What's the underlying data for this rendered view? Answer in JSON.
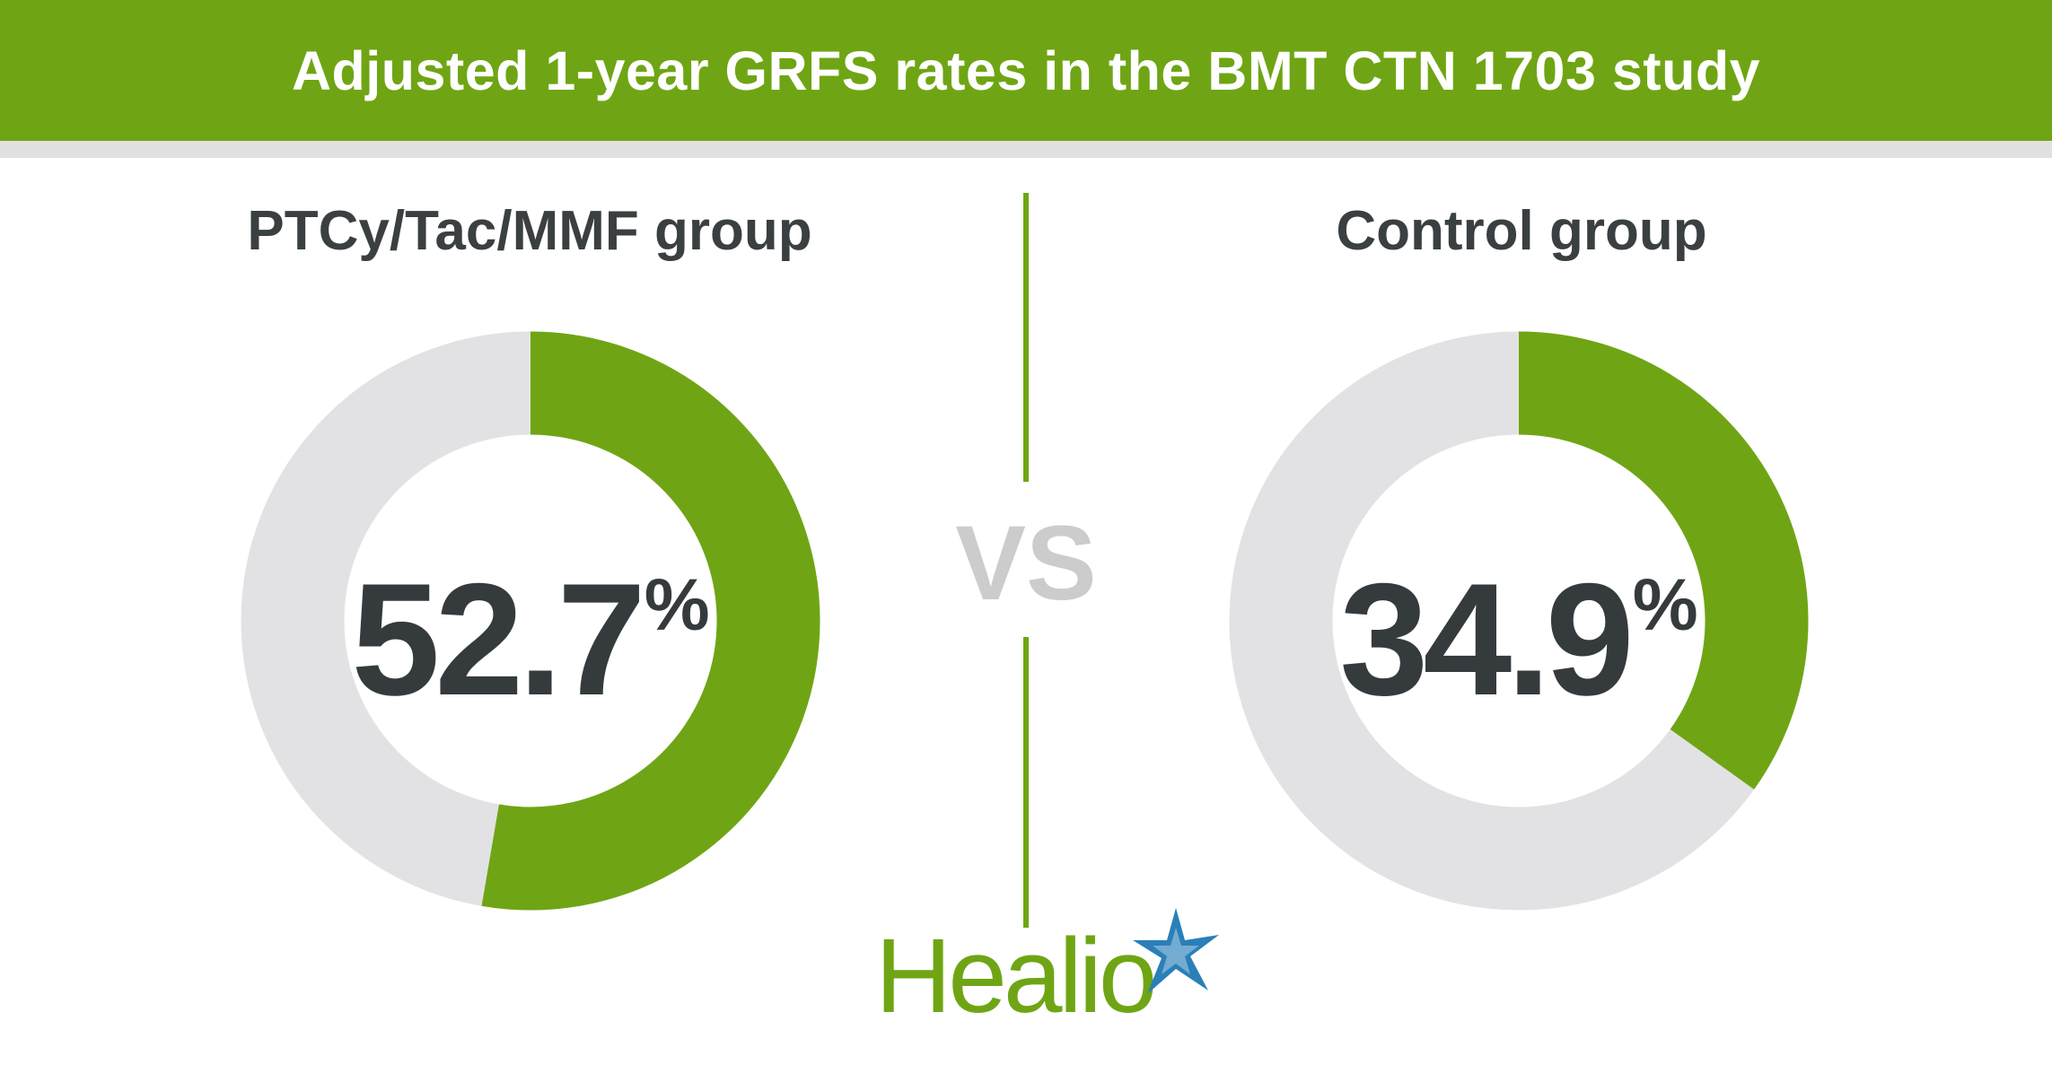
{
  "title": "Adjusted 1-year GRFS rates in the BMT CTN 1703 study",
  "vs_label": "VS",
  "brand": {
    "name": "Healio",
    "logo_icon": "star-burst-icon"
  },
  "colors": {
    "accent": "#6fa514",
    "header_strip": "#e1e1e1",
    "track": "#e2e2e4",
    "value_text": "#353a3d",
    "label_text": "#3a3f42",
    "vs_text": "#cccccc",
    "logo_star": "#2a7fb8"
  },
  "chart_data": [
    {
      "type": "pie",
      "style": "donut",
      "title": "PTCy/Tac/MMF group",
      "value": 52.7,
      "value_label": "52.7",
      "unit": "%",
      "max": 100
    },
    {
      "type": "pie",
      "style": "donut",
      "title": "Control group",
      "value": 34.9,
      "value_label": "34.9",
      "unit": "%",
      "max": 100
    }
  ]
}
